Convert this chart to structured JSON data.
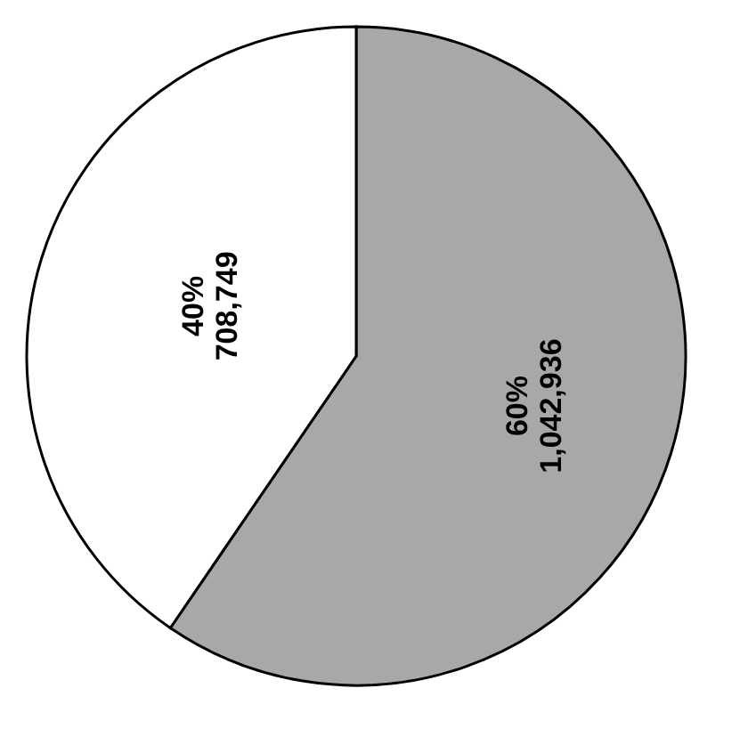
{
  "chart_data": {
    "type": "pie",
    "categories": [
      null,
      null
    ],
    "values": [
      1042936,
      708749
    ],
    "colors": [
      "#a8a8a8",
      "#ffffff"
    ],
    "value_labels": [
      "60%\n1,042,936",
      "40%\n708,749"
    ],
    "legend": false
  }
}
